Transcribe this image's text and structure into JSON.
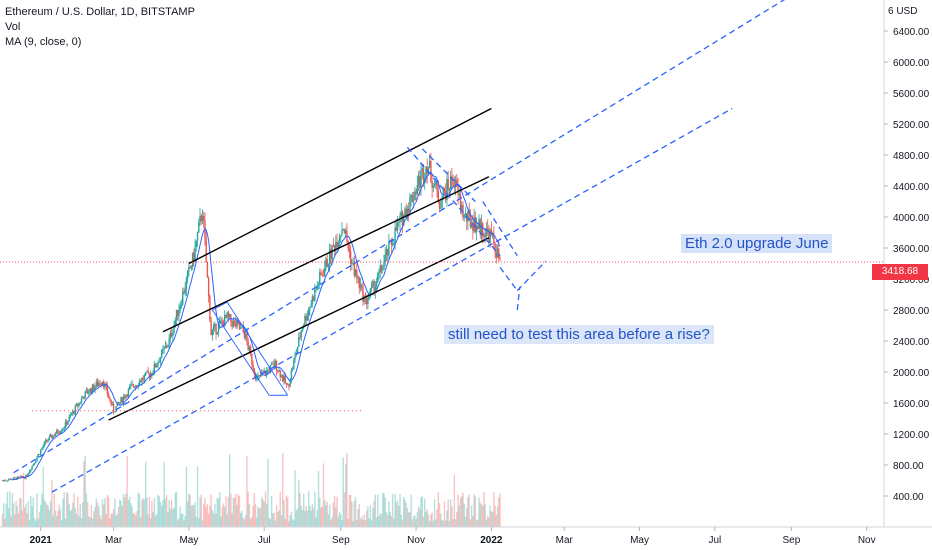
{
  "header": {
    "symbol_line": "Ethereum / U.S. Dollar, 1D, BITSTAMP",
    "vol_label": "Vol",
    "ma_label": "MA (9, close, 0)"
  },
  "price_axis": {
    "currency_label": "6 USD",
    "last_price_label": "3418.68"
  },
  "annotations": {
    "upgrade_note": "Eth 2.0 upgrade June",
    "test_note": "still need to test this area before a rise?"
  },
  "colors": {
    "up": "#26a69a",
    "down": "#ef5350",
    "ma": "#2962ff",
    "channel_solid": "#000000",
    "channel_dashed": "#2962ff",
    "last_price": "#f23645",
    "note_bg": "#d6e2f7"
  },
  "chart_data": {
    "type": "candlestick",
    "title": "Ethereum / U.S. Dollar, 1D, BITSTAMP",
    "y_ticks": [
      400,
      800,
      1200,
      1600,
      2000,
      2400,
      2800,
      3200,
      3600,
      4000,
      4400,
      4800,
      5200,
      5600,
      6000,
      6400
    ],
    "y_tick_labels": [
      "400.00",
      "800.00",
      "1200.00",
      "1600.00",
      "2000.00",
      "2400.00",
      "2800.00",
      "3200.00",
      "3600.00",
      "4000.00",
      "4400.00",
      "4800.00",
      "5200.00",
      "5600.00",
      "6000.00",
      "6400.00"
    ],
    "x_ticks": [
      "2021-01-01",
      "2021-03-01",
      "2021-05-01",
      "2021-07-01",
      "2021-09-01",
      "2021-11-01",
      "2022-01-01",
      "2022-03-01",
      "2022-05-01",
      "2022-07-01",
      "2022-09-01",
      "2022-11-01"
    ],
    "x_tick_labels": [
      "2021",
      "Mar",
      "May",
      "Jul",
      "Sep",
      "Nov",
      "2022",
      "Mar",
      "May",
      "Jul",
      "Sep",
      "Nov"
    ],
    "x_range": [
      "2020-11-29",
      "2022-11-15"
    ],
    "y_range": [
      0,
      6800
    ],
    "last_price": 3418.68,
    "grid": false,
    "price_anchors": [
      [
        "2020-12-01",
        600
      ],
      [
        "2020-12-20",
        650
      ],
      [
        "2021-01-05",
        1100
      ],
      [
        "2021-01-20",
        1300
      ],
      [
        "2021-02-05",
        1700
      ],
      [
        "2021-02-20",
        1900
      ],
      [
        "2021-03-01",
        1500
      ],
      [
        "2021-03-15",
        1800
      ],
      [
        "2021-04-01",
        2000
      ],
      [
        "2021-04-15",
        2400
      ],
      [
        "2021-05-05",
        3500
      ],
      [
        "2021-05-12",
        4100
      ],
      [
        "2021-05-19",
        2500
      ],
      [
        "2021-06-01",
        2700
      ],
      [
        "2021-06-15",
        2500
      ],
      [
        "2021-06-25",
        1900
      ],
      [
        "2021-07-10",
        2100
      ],
      [
        "2021-07-20",
        1800
      ],
      [
        "2021-08-01",
        2600
      ],
      [
        "2021-08-15",
        3200
      ],
      [
        "2021-09-03",
        3900
      ],
      [
        "2021-09-10",
        3400
      ],
      [
        "2021-09-21",
        2900
      ],
      [
        "2021-10-01",
        3200
      ],
      [
        "2021-10-15",
        3800
      ],
      [
        "2021-10-30",
        4300
      ],
      [
        "2021-11-10",
        4700
      ],
      [
        "2021-11-20",
        4200
      ],
      [
        "2021-12-01",
        4500
      ],
      [
        "2021-12-10",
        4000
      ],
      [
        "2021-12-20",
        3900
      ],
      [
        "2022-01-01",
        3750
      ],
      [
        "2022-01-08",
        3418.68
      ]
    ],
    "volume_scale_max": 1000
  },
  "drawings": {
    "solid_lines": [
      [
        [
          "2021-02-25",
          1380
        ],
        [
          "2021-12-30",
          3730
        ]
      ],
      [
        [
          "2021-04-10",
          2520
        ],
        [
          "2021-12-30",
          4520
        ]
      ],
      [
        [
          "2021-05-01",
          3400
        ],
        [
          "2022-01-01",
          5400
        ]
      ]
    ],
    "dashed_lines": [
      [
        [
          "2020-12-10",
          700
        ],
        [
          "2022-09-05",
          6900
        ]
      ],
      [
        [
          "2021-01-10",
          450
        ],
        [
          "2022-07-15",
          5400
        ]
      ],
      [
        [
          "2021-10-25",
          4900
        ],
        [
          "2022-01-08",
          3500
        ]
      ],
      [
        [
          "2021-11-06",
          4880
        ],
        [
          "2021-12-19",
          4200
        ]
      ],
      [
        [
          "2021-12-25",
          4200
        ],
        [
          "2022-01-22",
          3500
        ]
      ],
      [
        [
          "2022-01-08",
          3350
        ],
        [
          "2022-01-22",
          3050
        ]
      ],
      [
        [
          "2022-01-22",
          3050
        ],
        [
          "2022-02-14",
          3430
        ]
      ],
      [
        [
          "2022-01-22",
          2800
        ],
        [
          "2022-01-24",
          3100
        ]
      ]
    ],
    "rectangle_lines": [
      [
        [
          "2021-06-01",
          2900
        ],
        [
          "2021-07-20",
          1700
        ]
      ],
      [
        [
          "2021-05-20",
          2800
        ],
        [
          "2021-07-05",
          1700
        ]
      ],
      [
        [
          "2021-05-20",
          2800
        ],
        [
          "2021-06-01",
          2900
        ]
      ],
      [
        [
          "2021-07-05",
          1700
        ],
        [
          "2021-07-20",
          1700
        ]
      ]
    ],
    "support_dotted": [
      [
        "2020-12-25",
        1500
      ],
      [
        "2021-09-20",
        1500
      ]
    ]
  }
}
